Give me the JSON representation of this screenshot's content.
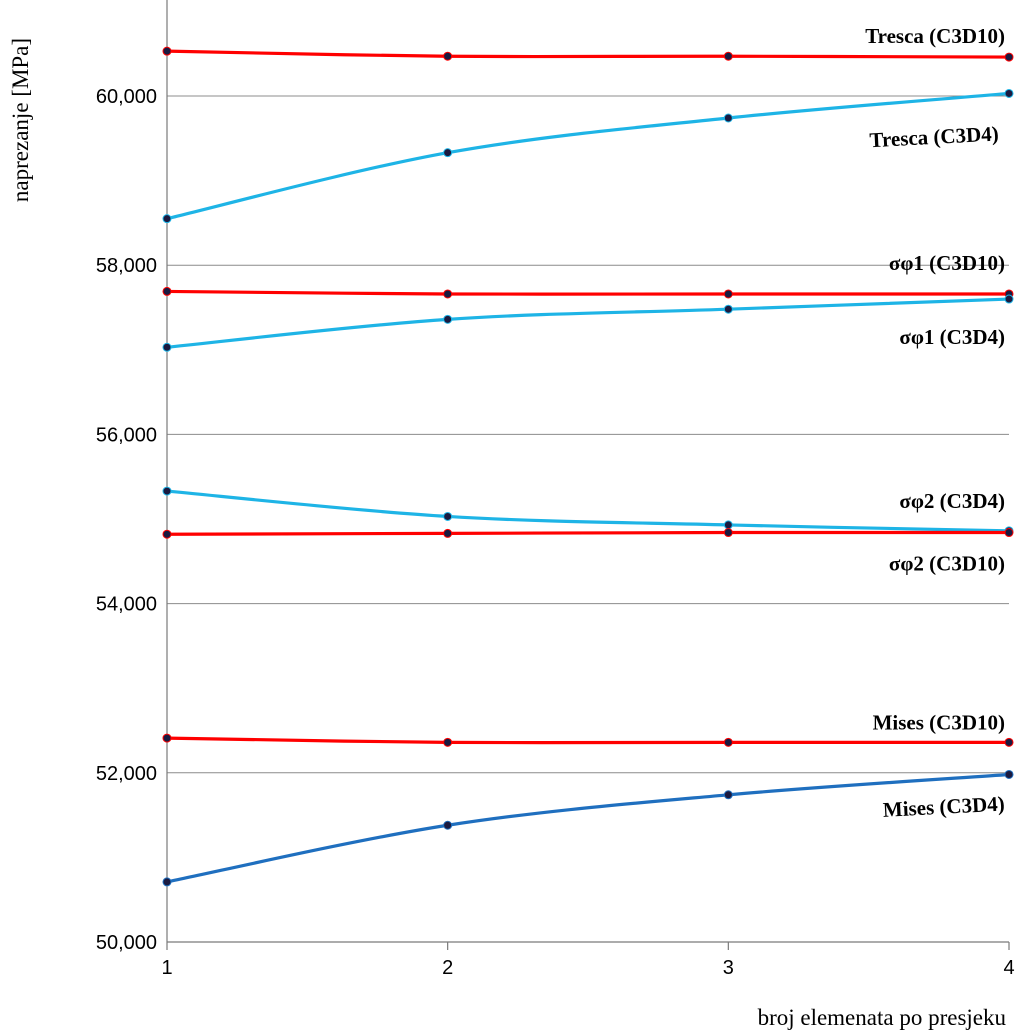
{
  "chart_data": {
    "type": "line",
    "title": "",
    "xlabel": "broj elemenata po presjeku",
    "ylabel": "naprezanje [MPa]",
    "x": [
      1,
      2,
      3,
      4
    ],
    "x_ticks": [
      "1",
      "2",
      "3",
      "4"
    ],
    "xlim": [
      1,
      4
    ],
    "ylim": [
      50,
      61.2
    ],
    "y_ticks": [
      50,
      52,
      54,
      56,
      58,
      60
    ],
    "y_tick_labels": [
      "50,000",
      "52,000",
      "54,000",
      "56,000",
      "58,000",
      "60,000"
    ],
    "grid": "horizontal",
    "legend": "none (series labelled inline)",
    "colors": {
      "c3d10": "#ff0000",
      "c3d4": "#1eb4e6",
      "mises_c3d4": "#1f6fbf",
      "marker": "#1a1a40",
      "grid": "#8c8c8c"
    },
    "series": [
      {
        "name": "Tresca (C3D10)",
        "values": [
          60.53,
          60.47,
          60.47,
          60.46
        ],
        "color": "#ff0000"
      },
      {
        "name": "Tresca (C3D4)",
        "values": [
          58.55,
          59.33,
          59.74,
          60.03
        ],
        "color": "#1eb4e6"
      },
      {
        "name": "σφ1 (C3D10)",
        "values": [
          57.69,
          57.66,
          57.66,
          57.66
        ],
        "color": "#ff0000"
      },
      {
        "name": "σφ1 (C3D4)",
        "values": [
          57.03,
          57.36,
          57.48,
          57.6
        ],
        "color": "#1eb4e6"
      },
      {
        "name": "σφ2 (C3D4)",
        "values": [
          55.33,
          55.03,
          54.93,
          54.86
        ],
        "color": "#1eb4e6"
      },
      {
        "name": "σφ2 (C3D10)",
        "values": [
          54.82,
          54.83,
          54.84,
          54.84
        ],
        "color": "#ff0000"
      },
      {
        "name": "Mises (C3D10)",
        "values": [
          52.41,
          52.36,
          52.36,
          52.36
        ],
        "color": "#ff0000"
      },
      {
        "name": "Mises (C3D4)",
        "values": [
          50.71,
          51.38,
          51.74,
          51.98
        ],
        "color": "#1f6fbf"
      }
    ]
  }
}
